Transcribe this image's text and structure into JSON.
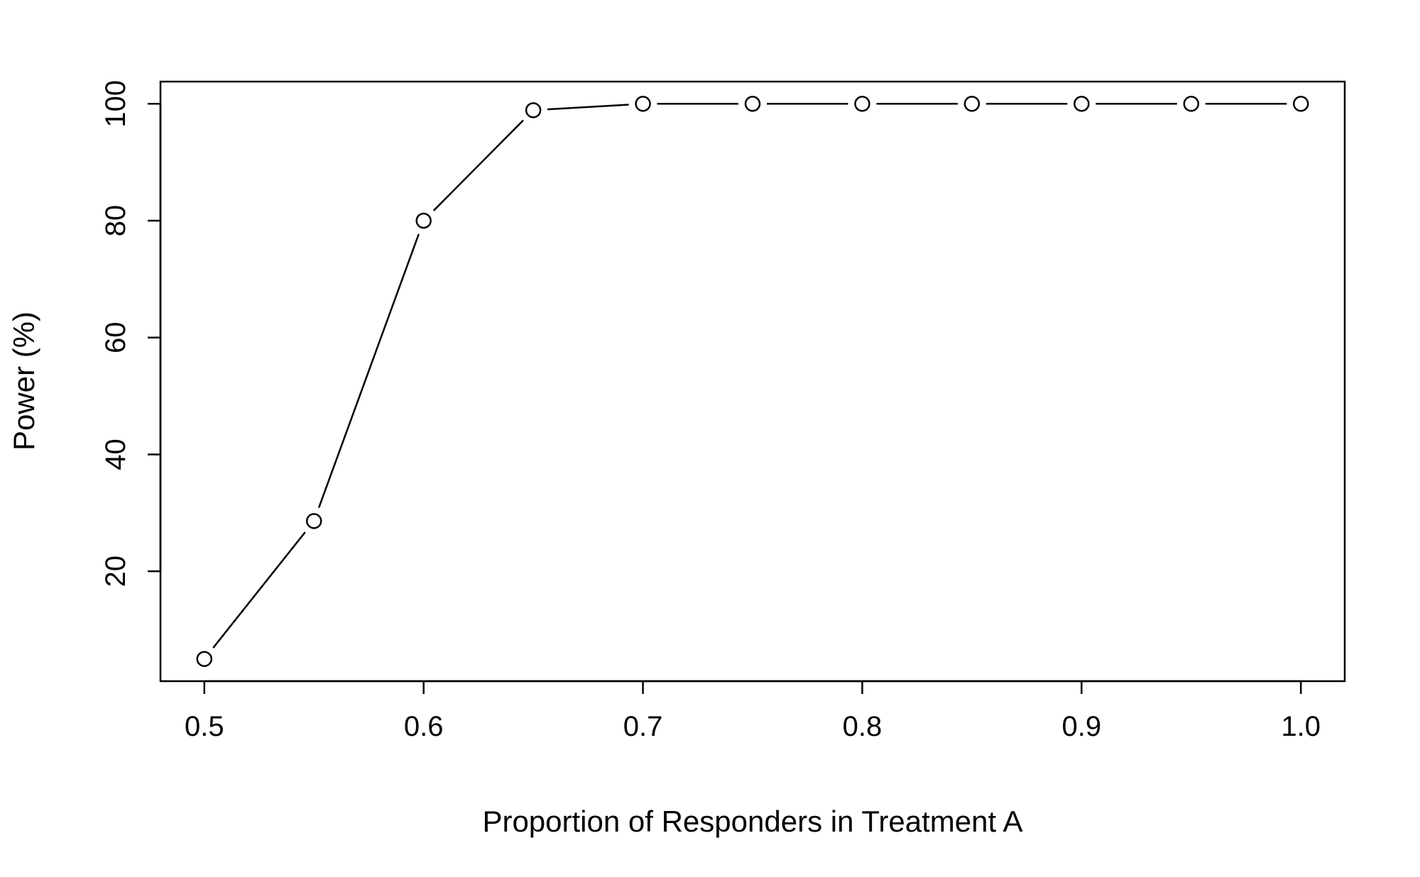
{
  "chart_data": {
    "type": "line",
    "title": "",
    "xlabel": "Proportion of Responders in Treatment A",
    "ylabel": "Power (%)",
    "x": [
      0.5,
      0.55,
      0.6,
      0.65,
      0.7,
      0.75,
      0.8,
      0.85,
      0.9,
      0.95,
      1.0
    ],
    "series": [
      {
        "values": [
          5,
          28.6,
          80,
          98.9,
          100,
          100,
          100,
          100,
          100,
          100,
          100
        ]
      }
    ],
    "xticks": [
      "0.5",
      "0.6",
      "0.7",
      "0.8",
      "0.9",
      "1.0"
    ],
    "yticks": [
      "20",
      "40",
      "60",
      "80",
      "100"
    ],
    "xlim": [
      0.48,
      1.02
    ],
    "ylim": [
      1.2,
      103.8
    ],
    "grid": false,
    "marker": "open-circle",
    "line_style": "gapped-line",
    "colors": {
      "line": "#000000",
      "marker_fill": "#ffffff"
    }
  }
}
